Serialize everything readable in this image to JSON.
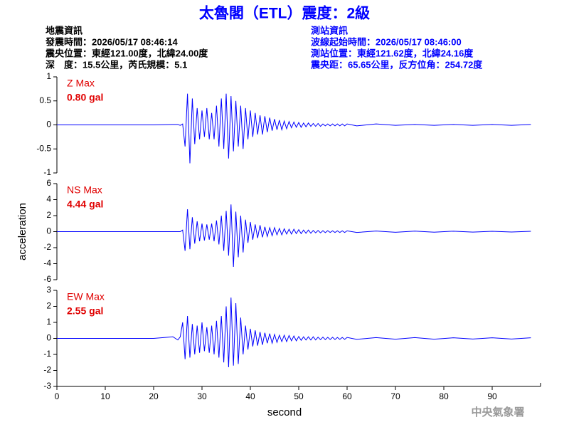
{
  "title": "太魯閣（ETL）震度：2級",
  "info_left": [
    "地震資訊",
    "發震時間：2026/05/17 08:46:14",
    "震央位置：東經121.00度，北緯24.00度",
    "深　度：15.5公里，芮氏規模：5.1"
  ],
  "info_right": [
    "測站資訊",
    "波線起始時間：2026/05/17 08:46:00",
    "測站位置：東經121.62度，北緯24.16度",
    "震央距：65.65公里，反方位角：254.72度"
  ],
  "footer": "中央氣象署",
  "chart_data": [
    {
      "type": "line",
      "annotation": [
        "Z Max",
        "0.80 gal"
      ],
      "color": "#0000ff",
      "xlim": [
        0,
        100
      ],
      "ylim": [
        -1,
        1
      ],
      "yticks": [
        1,
        0.5,
        0,
        -0.5,
        -1
      ],
      "x": [
        0,
        4,
        8,
        12,
        16,
        20,
        24,
        25,
        25.5,
        26,
        26.5,
        27,
        27.5,
        28,
        28.5,
        29,
        29.5,
        30,
        30.5,
        31,
        31.5,
        32,
        32.5,
        33,
        33.5,
        34,
        34.5,
        35,
        35.5,
        36,
        36.5,
        37,
        37.5,
        38,
        38.5,
        39,
        39.5,
        40,
        40.5,
        41,
        41.5,
        42,
        42.5,
        43,
        43.5,
        44,
        44.5,
        45,
        45.5,
        46,
        46.5,
        47,
        47.5,
        48,
        48.5,
        49,
        49.5,
        50,
        50.5,
        51,
        51.5,
        52,
        52.5,
        53,
        53.5,
        54,
        54.5,
        55,
        55.5,
        56,
        56.5,
        57,
        57.5,
        58,
        58.5,
        59,
        59.5,
        60,
        62,
        66,
        70,
        74,
        78,
        82,
        86,
        90,
        94,
        98
      ],
      "values": [
        0,
        0,
        0,
        0,
        0,
        0,
        0.01,
        0.01,
        -0.01,
        0.02,
        -0.45,
        0.65,
        -0.8,
        0.55,
        -0.4,
        0.35,
        -0.3,
        0.3,
        -0.25,
        0.35,
        -0.3,
        0.25,
        -0.3,
        0.4,
        -0.45,
        0.55,
        -0.5,
        0.65,
        -0.7,
        0.6,
        -0.55,
        0.5,
        -0.45,
        0.4,
        -0.5,
        0.35,
        -0.3,
        0.3,
        -0.25,
        0.25,
        -0.2,
        0.2,
        -0.2,
        0.18,
        -0.15,
        0.15,
        -0.12,
        0.12,
        -0.1,
        0.1,
        -0.1,
        0.08,
        -0.08,
        0.07,
        -0.06,
        0.06,
        -0.05,
        0.05,
        -0.05,
        0.04,
        -0.04,
        0.04,
        -0.03,
        0.03,
        -0.03,
        0.03,
        -0.03,
        0.02,
        -0.02,
        0.02,
        -0.02,
        0.02,
        -0.02,
        0.02,
        -0.02,
        0.02,
        -0.02,
        0.02,
        -0.02,
        0.02,
        -0.01,
        0.01,
        -0.01,
        0.01,
        -0.01,
        0.01,
        -0.01,
        0.01
      ]
    },
    {
      "type": "line",
      "annotation": [
        "NS Max",
        "4.44 gal"
      ],
      "color": "#0000ff",
      "y_label": "acceleration",
      "xlim": [
        0,
        100
      ],
      "ylim": [
        -6,
        6
      ],
      "yticks": [
        6,
        4,
        2,
        0,
        -2,
        -4,
        -6
      ],
      "x": [
        0,
        4,
        8,
        12,
        16,
        20,
        24,
        25,
        25.5,
        26,
        26.5,
        27,
        27.5,
        28,
        28.5,
        29,
        29.5,
        30,
        30.5,
        31,
        31.5,
        32,
        32.5,
        33,
        33.5,
        34,
        34.5,
        35,
        35.5,
        36,
        36.5,
        37,
        37.5,
        38,
        38.5,
        39,
        39.5,
        40,
        40.5,
        41,
        41.5,
        42,
        42.5,
        43,
        43.5,
        44,
        44.5,
        45,
        45.5,
        46,
        46.5,
        47,
        47.5,
        48,
        48.5,
        49,
        49.5,
        50,
        50.5,
        51,
        51.5,
        52,
        52.5,
        53,
        53.5,
        54,
        54.5,
        55,
        55.5,
        56,
        56.5,
        57,
        57.5,
        58,
        58.5,
        59,
        59.5,
        60,
        62,
        66,
        70,
        74,
        78,
        82,
        86,
        90,
        94,
        98
      ],
      "values": [
        0,
        0,
        0,
        0,
        0,
        0,
        0,
        0,
        0,
        0.2,
        -2.4,
        2.8,
        -2.2,
        1.8,
        -1.5,
        1.3,
        -1.2,
        1.0,
        -1.1,
        0.9,
        -1.0,
        1.0,
        -1.2,
        1.4,
        -1.6,
        2.0,
        -2.4,
        2.6,
        -3.0,
        3.4,
        -4.4,
        2.5,
        -3.2,
        2.0,
        -2.6,
        1.5,
        -1.4,
        1.2,
        -1.0,
        0.9,
        -0.8,
        0.8,
        -0.7,
        0.6,
        -0.6,
        0.5,
        -0.5,
        0.5,
        -0.4,
        0.4,
        -0.4,
        0.35,
        -0.3,
        0.3,
        -0.3,
        0.3,
        -0.25,
        0.25,
        -0.25,
        0.2,
        -0.2,
        0.2,
        -0.2,
        0.15,
        -0.15,
        0.15,
        -0.15,
        0.12,
        -0.12,
        0.12,
        -0.1,
        0.1,
        -0.1,
        0.1,
        -0.1,
        0.1,
        -0.1,
        0.1,
        -0.1,
        0.08,
        -0.08,
        0.07,
        -0.07,
        0.06,
        -0.06,
        0.05,
        -0.05,
        0.05
      ]
    },
    {
      "type": "line",
      "annotation": [
        "EW Max",
        "2.55 gal"
      ],
      "color": "#0000ff",
      "x_label": "second",
      "xlim": [
        0,
        100
      ],
      "xticks": [
        0,
        10,
        20,
        30,
        40,
        50,
        60,
        70,
        80,
        90
      ],
      "ylim": [
        -3,
        3
      ],
      "yticks": [
        3,
        2,
        1,
        0,
        -1,
        -2,
        -3
      ],
      "x": [
        0,
        4,
        8,
        12,
        16,
        20,
        24,
        25,
        25.5,
        26,
        26.5,
        27,
        27.5,
        28,
        28.5,
        29,
        29.5,
        30,
        30.5,
        31,
        31.5,
        32,
        32.5,
        33,
        33.5,
        34,
        34.5,
        35,
        35.5,
        36,
        36.5,
        37,
        37.5,
        38,
        38.5,
        39,
        39.5,
        40,
        40.5,
        41,
        41.5,
        42,
        42.5,
        43,
        43.5,
        44,
        44.5,
        45,
        45.5,
        46,
        46.5,
        47,
        47.5,
        48,
        48.5,
        49,
        49.5,
        50,
        50.5,
        51,
        51.5,
        52,
        52.5,
        53,
        53.5,
        54,
        54.5,
        55,
        55.5,
        56,
        56.5,
        57,
        57.5,
        58,
        58.5,
        59,
        59.5,
        60,
        62,
        66,
        70,
        74,
        78,
        82,
        86,
        90,
        94,
        98
      ],
      "values": [
        0,
        0,
        0,
        0,
        0,
        0,
        0.1,
        -0.1,
        0.1,
        1.0,
        -1.3,
        1.4,
        -1.2,
        0.9,
        -1.0,
        0.8,
        -0.9,
        1.0,
        -0.8,
        0.7,
        -0.9,
        0.8,
        -1.0,
        1.1,
        -1.2,
        1.4,
        -1.5,
        2.0,
        -1.8,
        2.55,
        -1.7,
        2.2,
        -1.6,
        1.3,
        -1.0,
        0.8,
        -0.7,
        0.6,
        -0.5,
        0.5,
        -0.45,
        0.4,
        -0.4,
        0.35,
        -0.3,
        0.3,
        -0.3,
        0.25,
        -0.25,
        0.2,
        -0.2,
        0.2,
        -0.2,
        0.18,
        -0.15,
        0.15,
        -0.15,
        0.12,
        -0.12,
        0.1,
        -0.1,
        0.1,
        -0.1,
        0.1,
        -0.1,
        0.08,
        -0.08,
        0.08,
        -0.08,
        0.07,
        -0.07,
        0.07,
        -0.07,
        0.06,
        -0.06,
        0.06,
        -0.06,
        0.06,
        -0.06,
        0.05,
        -0.05,
        0.05,
        -0.05,
        0.04,
        -0.04,
        0.04,
        -0.04,
        0.04
      ]
    }
  ]
}
